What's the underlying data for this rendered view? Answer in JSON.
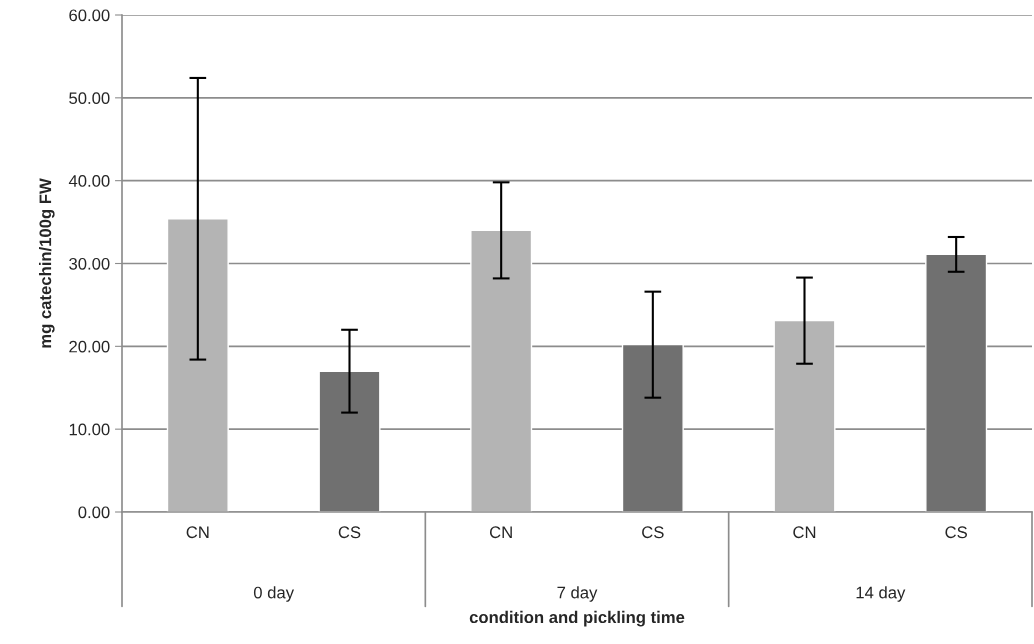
{
  "chart_data": {
    "type": "bar",
    "categories": [
      "CN",
      "CS",
      "CN",
      "CS",
      "CN",
      "CS"
    ],
    "values": [
      35.4,
      17.0,
      34.0,
      20.2,
      23.1,
      31.1
    ],
    "errors": [
      17.0,
      5.0,
      5.8,
      6.4,
      5.2,
      2.1
    ],
    "colors": [
      "#b4b4b4",
      "#707070",
      "#b4b4b4",
      "#707070",
      "#b4b4b4",
      "#707070"
    ],
    "xlabel": "condition and pickling time",
    "ylabel": "mg catechin/100g FW",
    "annotations": [
      "0 day",
      "7 day",
      "14 day"
    ],
    "ylim": [
      0,
      60
    ],
    "yticks": [
      {
        "value": 0,
        "label": "0.00"
      },
      {
        "value": 10,
        "label": "10.00"
      },
      {
        "value": 20,
        "label": "20.00"
      },
      {
        "value": 30,
        "label": "30.00"
      },
      {
        "value": 40,
        "label": "40.00"
      },
      {
        "value": 50,
        "label": "50.00"
      },
      {
        "value": 60,
        "label": "60.00"
      }
    ],
    "grid": "y",
    "legend": false
  }
}
